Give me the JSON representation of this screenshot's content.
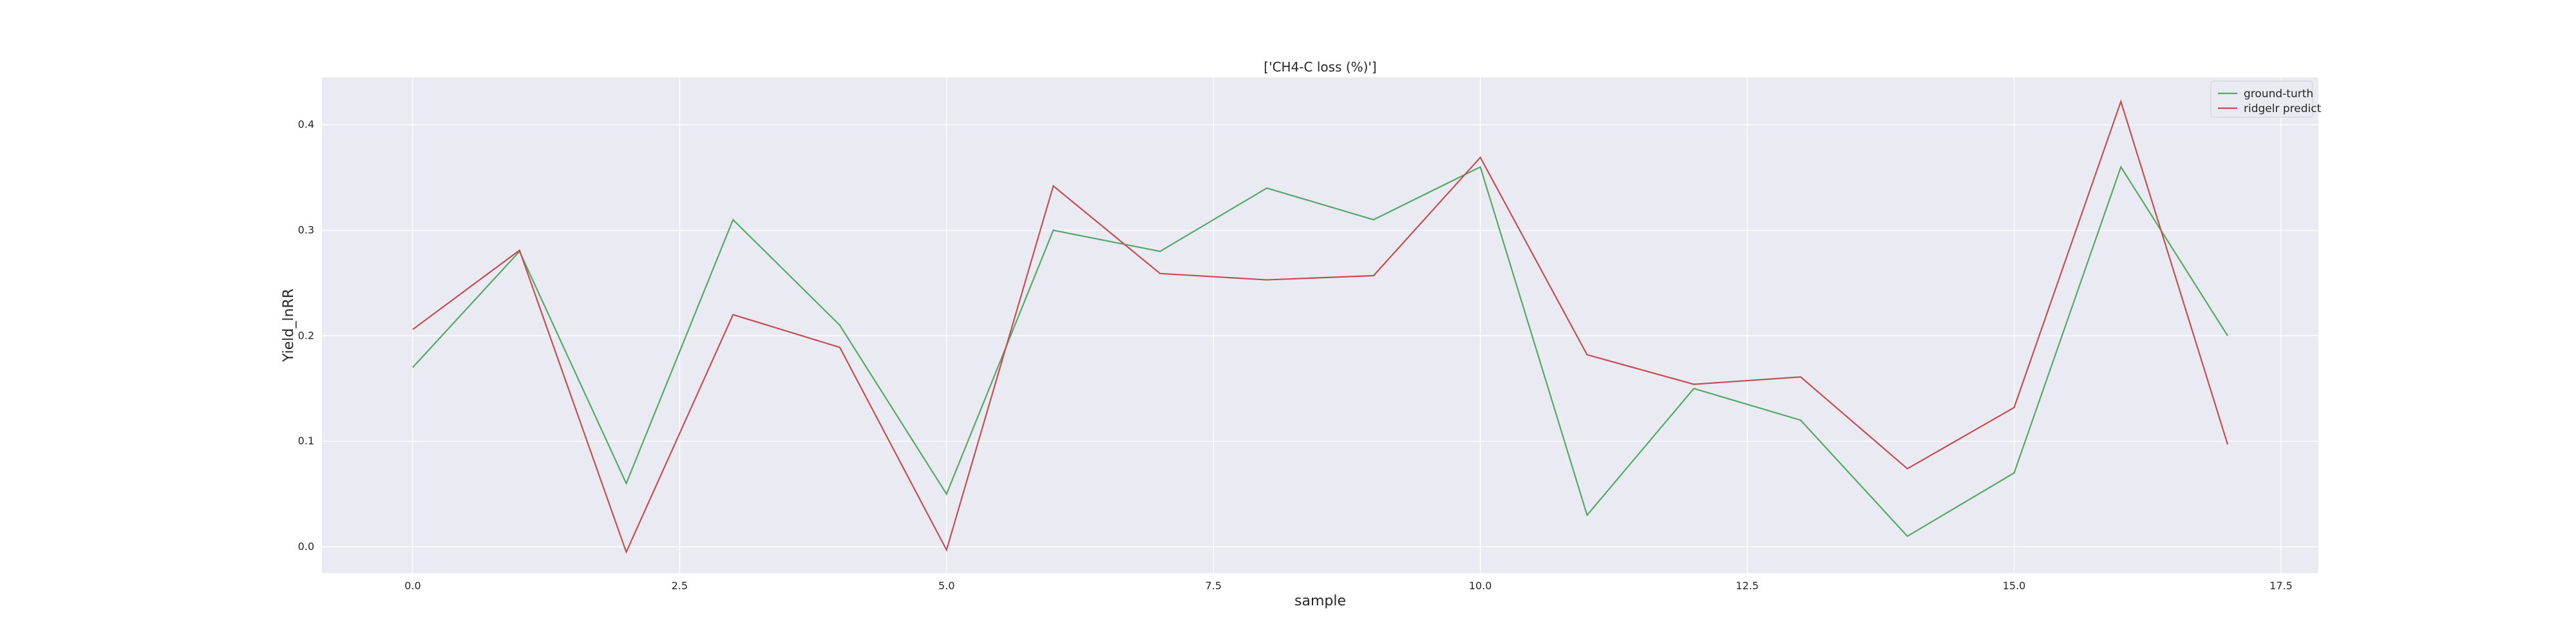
{
  "chart_data": {
    "type": "line",
    "title": "['CH4-C loss (%)']",
    "xlabel": "sample",
    "ylabel": "Yield_lnRR",
    "xlim": [
      -0.85,
      17.85
    ],
    "ylim": [
      -0.025,
      0.445
    ],
    "xticks": [
      0.0,
      2.5,
      5.0,
      7.5,
      10.0,
      12.5,
      15.0,
      17.5
    ],
    "xtick_labels": [
      "0.0",
      "2.5",
      "5.0",
      "7.5",
      "10.0",
      "12.5",
      "15.0",
      "17.5"
    ],
    "yticks": [
      0.0,
      0.1,
      0.2,
      0.3,
      0.4
    ],
    "ytick_labels": [
      "0.0",
      "0.1",
      "0.2",
      "0.3",
      "0.4"
    ],
    "grid": true,
    "legend_position": "top-right",
    "background_color": "#eaeaf2",
    "x": [
      0,
      1,
      2,
      3,
      4,
      5,
      6,
      7,
      8,
      9,
      10,
      11,
      12,
      13,
      14,
      15,
      16,
      17
    ],
    "series": [
      {
        "name": "ground-turth",
        "color": "#55a868",
        "values": [
          0.17,
          0.28,
          0.06,
          0.31,
          0.21,
          0.05,
          0.3,
          0.28,
          0.34,
          0.31,
          0.36,
          0.03,
          0.15,
          0.12,
          0.01,
          0.07,
          0.36,
          0.2
        ]
      },
      {
        "name": "ridgelr predict",
        "color": "#c44e52",
        "values": [
          0.206,
          0.281,
          -0.005,
          0.22,
          0.189,
          -0.003,
          0.342,
          0.259,
          0.253,
          0.257,
          0.369,
          0.182,
          0.154,
          0.161,
          0.074,
          0.132,
          0.422,
          0.097
        ]
      }
    ]
  }
}
